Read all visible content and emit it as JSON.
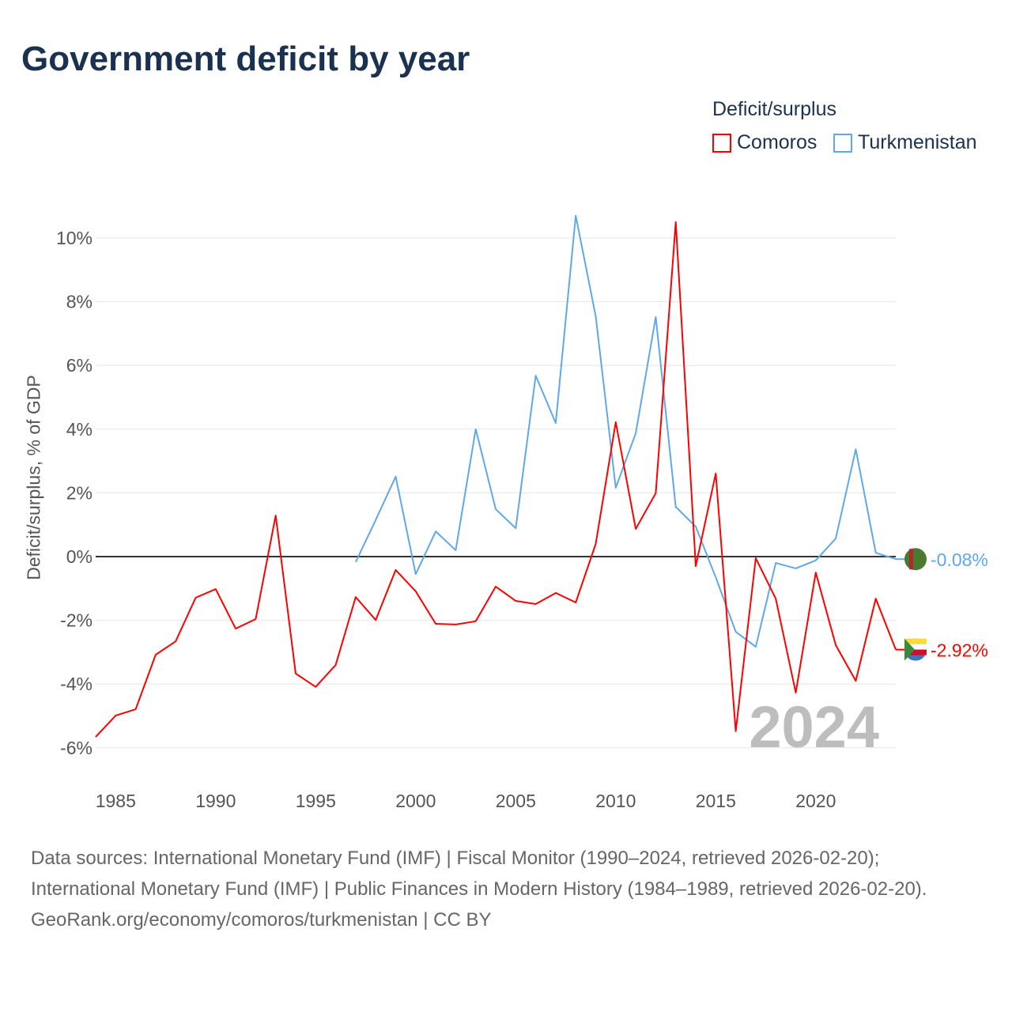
{
  "title": "Government deficit by year",
  "legend": {
    "title": "Deficit/surplus",
    "items": [
      {
        "label": "Comoros",
        "color": "#ff0000"
      },
      {
        "label": "Turkmenistan",
        "color": "#5fa8ea"
      }
    ]
  },
  "chart_data": {
    "type": "line",
    "title": "Government deficit by year",
    "xlabel": "",
    "ylabel": "Deficit/surplus, % of GDP",
    "xlim": [
      1984,
      2024
    ],
    "ylim": [
      -7,
      11
    ],
    "x_ticks": [
      1985,
      1990,
      1995,
      2000,
      2005,
      2010,
      2015,
      2020
    ],
    "y_ticks": [
      -6,
      -4,
      -2,
      0,
      2,
      4,
      6,
      8,
      10
    ],
    "y_tick_labels": [
      "-6%",
      "-4%",
      "-2%",
      "0%",
      "2%",
      "4%",
      "6%",
      "8%",
      "10%"
    ],
    "grid": true,
    "legend_position": "top-right",
    "year_watermark": "2024",
    "series": [
      {
        "name": "Comoros",
        "color": "#ff0000",
        "end_label": "-2.92%",
        "x": [
          1984,
          1985,
          1986,
          1987,
          1988,
          1989,
          1990,
          1991,
          1992,
          1993,
          1994,
          1995,
          1996,
          1997,
          1998,
          1999,
          2000,
          2001,
          2002,
          2003,
          2004,
          2005,
          2006,
          2007,
          2008,
          2009,
          2010,
          2011,
          2012,
          2013,
          2014,
          2015,
          2016,
          2017,
          2018,
          2019,
          2020,
          2021,
          2022,
          2023,
          2024
        ],
        "values": [
          -5.66,
          -4.99,
          -4.79,
          -3.08,
          -2.66,
          -1.29,
          -1.02,
          -2.26,
          -1.96,
          1.29,
          -3.67,
          -4.09,
          -3.4,
          -1.27,
          -1.99,
          -0.42,
          -1.09,
          -2.11,
          -2.13,
          -2.03,
          -0.94,
          -1.39,
          -1.49,
          -1.14,
          -1.44,
          0.4,
          4.22,
          0.87,
          1.99,
          10.5,
          -0.3,
          2.61,
          -5.48,
          -0.05,
          -1.32,
          -4.27,
          -0.5,
          -2.78,
          -3.9,
          -1.32,
          -2.92
        ]
      },
      {
        "name": "Turkmenistan",
        "color": "#5fa8ea",
        "end_label": "-0.08%",
        "x": [
          1997,
          1998,
          1999,
          2000,
          2001,
          2002,
          2003,
          2004,
          2005,
          2006,
          2007,
          2008,
          2009,
          2010,
          2011,
          2012,
          2013,
          2014,
          2015,
          2016,
          2017,
          2018,
          2019,
          2020,
          2021,
          2022,
          2023,
          2024
        ],
        "values": [
          -0.17,
          1.15,
          2.51,
          -0.55,
          0.79,
          0.2,
          4.0,
          1.49,
          0.89,
          5.68,
          4.19,
          10.7,
          7.54,
          2.16,
          3.87,
          7.52,
          1.56,
          0.94,
          -0.65,
          -2.36,
          -2.83,
          -0.2,
          -0.37,
          -0.12,
          0.57,
          3.37,
          0.12,
          -0.08
        ]
      }
    ]
  },
  "footer": {
    "sources": "Data sources: International Monetary Fund (IMF) | Fiscal Monitor (1990–2024, retrieved 2026-02-20); International Monetary Fund (IMF) | Public Finances in Modern History (1984–1989, retrieved 2026-02-20).",
    "link": "GeoRank.org/economy/comoros/turkmenistan",
    "license": " | CC BY"
  }
}
